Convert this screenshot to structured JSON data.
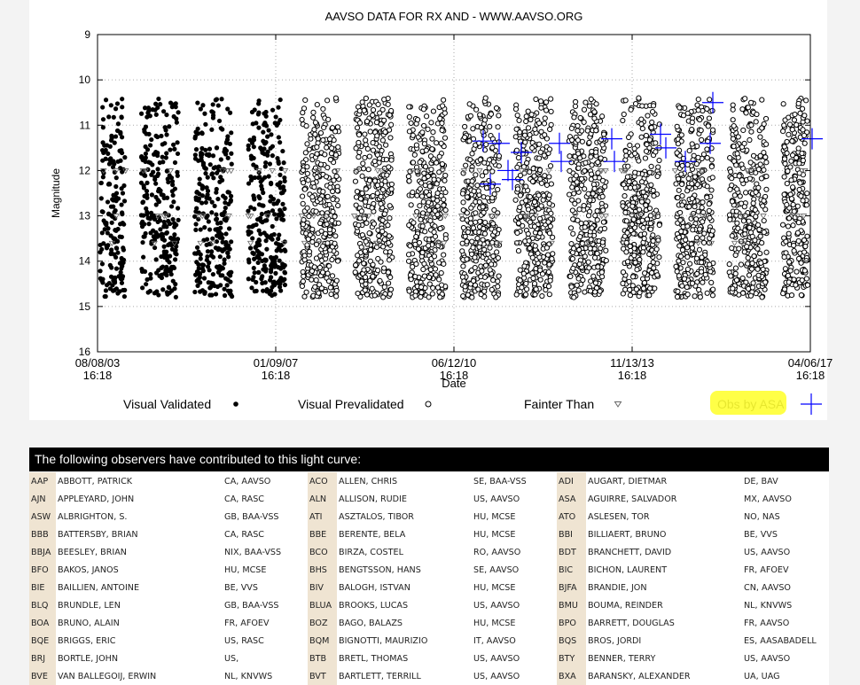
{
  "chart_data": {
    "type": "scatter",
    "title": "AAVSO DATA FOR RX AND - WWW.AAVSO.ORG",
    "xlabel": "Date",
    "ylabel": "Magnitude",
    "ylim": [
      16,
      9
    ],
    "y_ticks": [
      "9",
      "10",
      "11",
      "12",
      "13",
      "14",
      "15",
      "16"
    ],
    "x_ticks": [
      {
        "date": "08/08/03",
        "time": "16:18"
      },
      {
        "date": "01/09/07",
        "time": "16:18"
      },
      {
        "date": "06/12/10",
        "time": "16:18"
      },
      {
        "date": "11/13/13",
        "time": "16:18"
      },
      {
        "date": "04/06/17",
        "time": "16:18"
      }
    ],
    "grid": true,
    "legend": [
      {
        "label": "Visual Validated",
        "marker": "filled-circle"
      },
      {
        "label": "Visual Prevalidated",
        "marker": "open-circle"
      },
      {
        "label": "Fainter Than",
        "marker": "triangle-down"
      },
      {
        "label": "Obs by ASA",
        "marker": "cross",
        "color": "#0000ff"
      }
    ],
    "series": [
      {
        "name": "Visual Validated",
        "range_x": [
          "08/08/03",
          "01/09/07"
        ],
        "y_range": [
          10.1,
          15.1
        ]
      },
      {
        "name": "Visual Prevalidated",
        "range_x": [
          "01/09/07",
          "04/06/17"
        ],
        "y_range": [
          10.0,
          15.0
        ]
      },
      {
        "name": "Fainter Than",
        "y_values": [
          12.0,
          13.0,
          13.6
        ]
      },
      {
        "name": "Obs by ASA",
        "y_range": [
          10.5,
          12.5
        ]
      }
    ]
  },
  "observers_header": "The following observers have contributed to this light curve:",
  "observers": [
    [
      [
        "AAP",
        "ABBOTT, PATRICK",
        "CA, AAVSO"
      ],
      [
        "ACO",
        "ALLEN, CHRIS",
        "SE, BAA-VSS"
      ],
      [
        "ADI",
        "AUGART, DIETMAR",
        "DE, BAV"
      ]
    ],
    [
      [
        "AJN",
        "APPLEYARD, JOHN",
        "CA, RASC"
      ],
      [
        "ALN",
        "ALLISON, RUDIE",
        "US, AAVSO"
      ],
      [
        "ASA",
        "AGUIRRE, SALVADOR",
        "MX, AAVSO"
      ]
    ],
    [
      [
        "ASW",
        "ALBRIGHTON, S.",
        "GB, BAA-VSS"
      ],
      [
        "ATI",
        "ASZTALOS, TIBOR",
        "HU, MCSE"
      ],
      [
        "ATO",
        "ASLESEN, TOR",
        "NO, NAS"
      ]
    ],
    [
      [
        "BBB",
        "BATTERSBY, BRIAN",
        "CA, RASC"
      ],
      [
        "BBE",
        "BERENTE, BELA",
        "HU, MCSE"
      ],
      [
        "BBI",
        "BILLIAERT, BRUNO",
        "BE, VVS"
      ]
    ],
    [
      [
        "BBJA",
        "BEESLEY, BRIAN",
        "NIX, BAA-VSS"
      ],
      [
        "BCO",
        "BIRZA, COSTEL",
        "RO, AAVSO"
      ],
      [
        "BDT",
        "BRANCHETT, DAVID",
        "US, AAVSO"
      ]
    ],
    [
      [
        "BFO",
        "BAKOS, JANOS",
        "HU, MCSE"
      ],
      [
        "BHS",
        "BENGTSSON, HANS",
        "SE, AAVSO"
      ],
      [
        "BIC",
        "BICHON, LAURENT",
        "FR, AFOEV"
      ]
    ],
    [
      [
        "BIE",
        "BAILLIEN, ANTOINE",
        "BE, VVS"
      ],
      [
        "BIV",
        "BALOGH, ISTVAN",
        "HU, MCSE"
      ],
      [
        "BJFA",
        "BRANDIE, JON",
        "CN, AAVSO"
      ]
    ],
    [
      [
        "BLQ",
        "BRUNDLE, LEN",
        "GB, BAA-VSS"
      ],
      [
        "BLUA",
        "BROOKS, LUCAS",
        "US, AAVSO"
      ],
      [
        "BMU",
        "BOUMA, REINDER",
        "NL, KNVWS"
      ]
    ],
    [
      [
        "BOA",
        "BRUNO, ALAIN",
        "FR, AFOEV"
      ],
      [
        "BOZ",
        "BAGO, BALAZS",
        "HU, MCSE"
      ],
      [
        "BPO",
        "BARRETT, DOUGLAS",
        "FR, AAVSO"
      ]
    ],
    [
      [
        "BQE",
        "BRIGGS, ERIC",
        "US, RASC"
      ],
      [
        "BQM",
        "BIGNOTTI, MAURIZIO",
        "IT, AAVSO"
      ],
      [
        "BQS",
        "BROS, JORDI",
        "ES, AASABADELL"
      ]
    ],
    [
      [
        "BRJ",
        "BORTLE, JOHN",
        "US,"
      ],
      [
        "BTB",
        "BRETL, THOMAS",
        "US, AAVSO"
      ],
      [
        "BTY",
        "BENNER, TERRY",
        "US, AAVSO"
      ]
    ],
    [
      [
        "BVE",
        "VAN BALLEGOIJ, ERWIN",
        "NL, KNVWS"
      ],
      [
        "BVT",
        "BARTLETT, TERRILL",
        "US, AAVSO"
      ],
      [
        "BXA",
        "BARANSKY, ALEXANDER",
        "UA, UAG"
      ]
    ]
  ]
}
